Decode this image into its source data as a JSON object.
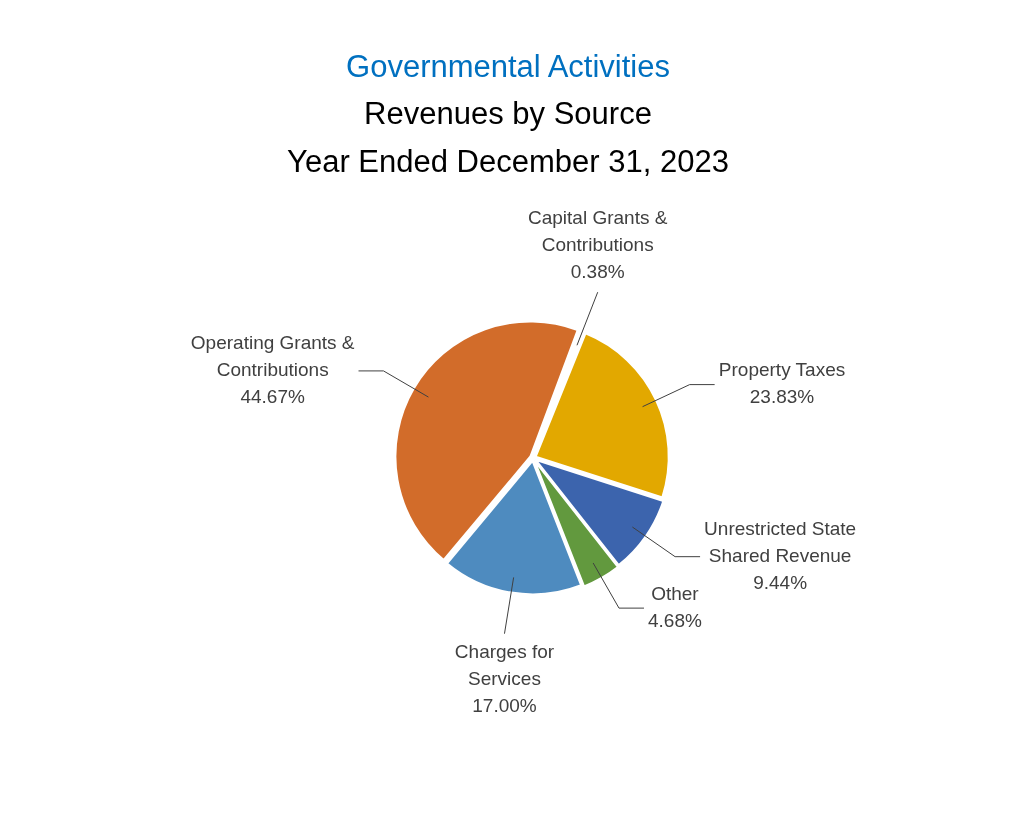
{
  "chart_data": {
    "type": "pie",
    "title": "Governmental Activities",
    "subtitle": "Revenues by Source\nYear Ended December 31, 2023",
    "categories": [
      "Property Taxes",
      "Unrestricted State Shared Revenue",
      "Other",
      "Charges for Services",
      "Operating Grants & Contributions",
      "Capital Grants & Contributions"
    ],
    "values": [
      23.83,
      9.44,
      4.68,
      17.0,
      44.67,
      0.38
    ],
    "value_labels": [
      "23.83%",
      "9.44%",
      "4.68%",
      "17.00%",
      "44.67%",
      "0.38%"
    ],
    "colors": [
      "#e2a800",
      "#3c64ad",
      "#62993e",
      "#4e8bbf",
      "#d26c2a",
      "#a5a5a5"
    ],
    "legend": false
  }
}
